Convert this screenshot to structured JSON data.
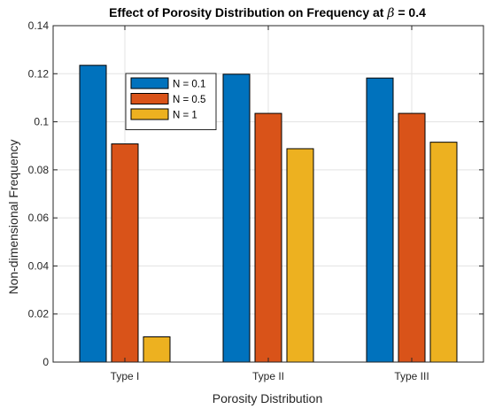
{
  "colors": {
    "series": [
      "#0072BD",
      "#D95319",
      "#EDB120"
    ],
    "grid": "#e3e3e3",
    "axis": "#262626"
  },
  "chart_data": {
    "type": "bar",
    "title_prefix": "Effect of Porosity Distribution on Frequency at ",
    "title_symbol": "β",
    "title_suffix": " = 0.4",
    "xlabel": "Porosity Distribution",
    "ylabel": "Non-dimensional Frequency",
    "categories": [
      "Type I",
      "Type II",
      "Type III"
    ],
    "ylim": [
      0,
      0.14
    ],
    "yticks": [
      0,
      0.02,
      0.04,
      0.06,
      0.08,
      0.1,
      0.12,
      0.14
    ],
    "ytick_labels": [
      "0",
      "0.02",
      "0.04",
      "0.06",
      "0.08",
      "0.1",
      "0.12",
      "0.14"
    ],
    "grid": true,
    "legend_placement": "inside upper-left",
    "series": [
      {
        "name": "N = 0.1",
        "values": [
          0.1235,
          0.1198,
          0.1182
        ]
      },
      {
        "name": "N = 0.5",
        "values": [
          0.0908,
          0.1035,
          0.1035
        ]
      },
      {
        "name": "N = 1",
        "values": [
          0.0105,
          0.0888,
          0.0915
        ]
      }
    ]
  }
}
